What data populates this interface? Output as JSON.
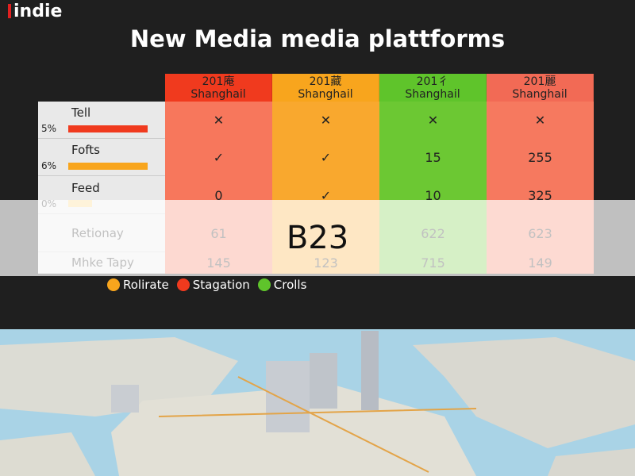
{
  "logo": "indie",
  "title": "New Media media plattforms",
  "table": {
    "columns": [
      {
        "year": "201庵",
        "city": "Shanghail",
        "head": "#f03a1e",
        "body": "#f7775c"
      },
      {
        "year": "201藏",
        "city": "Shanghail",
        "head": "#f8a51d",
        "body": "#f9a82e"
      },
      {
        "year": "201彳",
        "city": "Shanghail",
        "head": "#5fc42b",
        "body": "#6cc833"
      },
      {
        "year": "201麗",
        "city": "Shanghail",
        "head": "#f26a55",
        "body": "#f6795f"
      }
    ],
    "rows": [
      {
        "label": "Tell",
        "share": "5%",
        "bar": "#f03a1e",
        "cells": [
          "✕",
          "✕",
          "✕",
          "✕"
        ]
      },
      {
        "label": "Fofts",
        "share": "6%",
        "bar": "#f8a51d",
        "cells": [
          "✓",
          "✓",
          "15",
          "255"
        ]
      },
      {
        "label": "Feed",
        "share": "0%",
        "bar": "#fbd27a",
        "cells": [
          "0",
          "✓",
          "10",
          "325"
        ]
      },
      {
        "label": "Retionay",
        "share": null,
        "bar": null,
        "cells": [
          "61",
          null,
          "622",
          "623"
        ]
      },
      {
        "label": "Mhke Tapy",
        "share": null,
        "bar": null,
        "cells": [
          "145",
          "123",
          "715",
          "149"
        ]
      }
    ]
  },
  "legend": [
    {
      "label": "Rolirate",
      "color": "#f8a51d"
    },
    {
      "label": "Stagation",
      "color": "#f03a1e"
    },
    {
      "label": "Crolls",
      "color": "#5fc42b"
    }
  ],
  "overlay": "B23"
}
